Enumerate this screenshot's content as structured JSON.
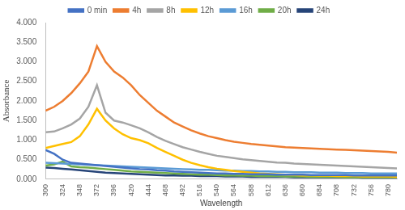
{
  "chart_data": {
    "type": "line",
    "x_label": "Wavelength",
    "y_label": "Absorbance",
    "legend": "top",
    "grid": false,
    "x": [
      300,
      312,
      324,
      336,
      348,
      360,
      372,
      384,
      396,
      408,
      420,
      432,
      444,
      456,
      468,
      480,
      492,
      504,
      516,
      528,
      540,
      552,
      564,
      576,
      588,
      600,
      612,
      624,
      636,
      648,
      660,
      672,
      684,
      696,
      708,
      720,
      732,
      744,
      756,
      768,
      780,
      792
    ],
    "xlim": [
      300,
      792
    ],
    "xticks": [
      300,
      324,
      348,
      372,
      396,
      420,
      444,
      468,
      492,
      516,
      540,
      564,
      588,
      612,
      636,
      660,
      684,
      708,
      732,
      756,
      780
    ],
    "ylim": [
      0,
      4
    ],
    "yticks": [
      {
        "value": 0,
        "label": "0.000"
      },
      {
        "value": 0.5,
        "label": "0.500"
      },
      {
        "value": 1,
        "label": "1.000"
      },
      {
        "value": 1.5,
        "label": "1.500"
      },
      {
        "value": 2,
        "label": "2.000"
      },
      {
        "value": 2.5,
        "label": "2.500"
      },
      {
        "value": 3,
        "label": "3.000"
      },
      {
        "value": 3.5,
        "label": "3.500"
      },
      {
        "value": 4,
        "label": "4.000"
      }
    ],
    "series": [
      {
        "name": "0 min",
        "color": "#4472c4",
        "values": [
          0.75,
          0.65,
          0.5,
          0.42,
          0.4,
          0.38,
          0.36,
          0.34,
          0.32,
          0.3,
          0.28,
          0.26,
          0.25,
          0.23,
          0.22,
          0.2,
          0.19,
          0.18,
          0.17,
          0.16,
          0.15,
          0.15,
          0.14,
          0.14,
          0.13,
          0.13,
          0.13,
          0.12,
          0.12,
          0.12,
          0.12,
          0.11,
          0.11,
          0.11,
          0.11,
          0.11,
          0.1,
          0.1,
          0.1,
          0.1,
          0.1,
          0.1
        ]
      },
      {
        "name": "4h",
        "color": "#ed7d31",
        "values": [
          1.75,
          1.85,
          2.0,
          2.2,
          2.45,
          2.75,
          3.4,
          3.0,
          2.75,
          2.6,
          2.4,
          2.15,
          1.95,
          1.75,
          1.6,
          1.45,
          1.35,
          1.25,
          1.17,
          1.1,
          1.05,
          1.0,
          0.96,
          0.93,
          0.9,
          0.88,
          0.86,
          0.84,
          0.82,
          0.81,
          0.8,
          0.79,
          0.78,
          0.77,
          0.76,
          0.75,
          0.74,
          0.73,
          0.72,
          0.71,
          0.7,
          0.68
        ]
      },
      {
        "name": "8h",
        "color": "#a5a5a5",
        "values": [
          1.2,
          1.22,
          1.3,
          1.4,
          1.55,
          1.85,
          2.4,
          1.7,
          1.5,
          1.45,
          1.38,
          1.3,
          1.2,
          1.08,
          0.98,
          0.9,
          0.82,
          0.76,
          0.7,
          0.65,
          0.6,
          0.57,
          0.54,
          0.51,
          0.49,
          0.47,
          0.45,
          0.43,
          0.42,
          0.4,
          0.39,
          0.38,
          0.37,
          0.36,
          0.35,
          0.34,
          0.33,
          0.32,
          0.31,
          0.3,
          0.29,
          0.28
        ]
      },
      {
        "name": "12h",
        "color": "#ffc000",
        "values": [
          0.8,
          0.85,
          0.9,
          0.95,
          1.1,
          1.4,
          1.8,
          1.5,
          1.3,
          1.15,
          1.05,
          1.0,
          0.92,
          0.8,
          0.7,
          0.6,
          0.5,
          0.42,
          0.36,
          0.31,
          0.27,
          0.24,
          0.21,
          0.19,
          0.17,
          0.15,
          0.14,
          0.13,
          0.12,
          0.11,
          0.1,
          0.1,
          0.09,
          0.09,
          0.08,
          0.08,
          0.08,
          0.07,
          0.07,
          0.07,
          0.07,
          0.06
        ]
      },
      {
        "name": "16h",
        "color": "#5b9bd5",
        "values": [
          0.42,
          0.41,
          0.4,
          0.39,
          0.38,
          0.37,
          0.36,
          0.35,
          0.34,
          0.33,
          0.32,
          0.31,
          0.3,
          0.29,
          0.28,
          0.27,
          0.26,
          0.25,
          0.24,
          0.24,
          0.23,
          0.22,
          0.22,
          0.21,
          0.21,
          0.2,
          0.2,
          0.19,
          0.19,
          0.18,
          0.18,
          0.18,
          0.17,
          0.17,
          0.17,
          0.16,
          0.16,
          0.16,
          0.15,
          0.15,
          0.15,
          0.15
        ]
      },
      {
        "name": "20h",
        "color": "#70ad47",
        "values": [
          0.35,
          0.38,
          0.45,
          0.33,
          0.31,
          0.3,
          0.28,
          0.26,
          0.24,
          0.22,
          0.2,
          0.19,
          0.18,
          0.17,
          0.16,
          0.15,
          0.14,
          0.13,
          0.12,
          0.12,
          0.11,
          0.1,
          0.1,
          0.09,
          0.09,
          0.08,
          0.08,
          0.08,
          0.07,
          0.07,
          0.07,
          0.06,
          0.06,
          0.06,
          0.06,
          0.05,
          0.05,
          0.05,
          0.05,
          0.05,
          0.05,
          0.05
        ]
      },
      {
        "name": "24h",
        "color": "#264478",
        "values": [
          0.3,
          0.29,
          0.27,
          0.25,
          0.23,
          0.21,
          0.19,
          0.17,
          0.16,
          0.15,
          0.14,
          0.13,
          0.12,
          0.11,
          0.1,
          0.1,
          0.09,
          0.09,
          0.08,
          0.08,
          0.08,
          0.07,
          0.07,
          0.07,
          0.06,
          0.06,
          0.06,
          0.06,
          0.06,
          0.05,
          0.05,
          0.05,
          0.05,
          0.05,
          0.05,
          0.05,
          0.05,
          0.04,
          0.04,
          0.04,
          0.04,
          0.04
        ]
      }
    ]
  }
}
